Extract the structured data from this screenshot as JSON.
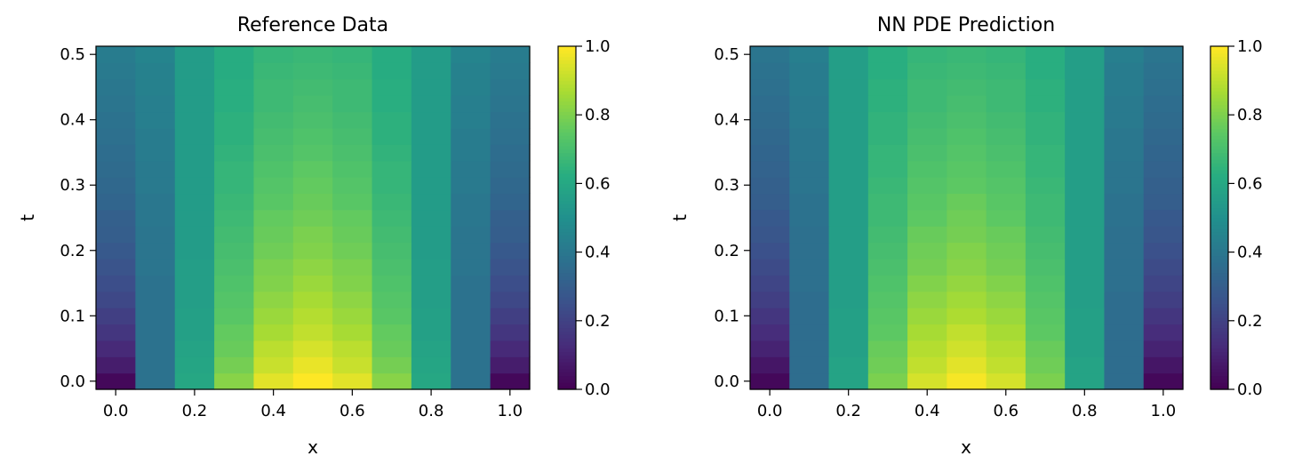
{
  "chart_data": [
    {
      "type": "heatmap",
      "title": "Reference Data",
      "xlabel": "x",
      "ylabel": "t",
      "x": [
        0.0,
        0.1,
        0.2,
        0.3,
        0.4,
        0.5,
        0.6,
        0.7,
        0.8,
        0.9,
        1.0
      ],
      "t_values": [
        0.0,
        0.025,
        0.05,
        0.075,
        0.1,
        0.125,
        0.15,
        0.175,
        0.2,
        0.225,
        0.25,
        0.275,
        0.3,
        0.325,
        0.35,
        0.375,
        0.4,
        0.425,
        0.45,
        0.475,
        0.5
      ],
      "xlim": [
        -0.05,
        1.05
      ],
      "ylim": [
        -0.0125,
        0.5125
      ],
      "xticks": [
        "0.0",
        "0.2",
        "0.4",
        "0.6",
        "0.8",
        "1.0"
      ],
      "yticks": [
        "0.0",
        "0.1",
        "0.2",
        "0.3",
        "0.4",
        "0.5"
      ],
      "colorbar": {
        "range": [
          0.0,
          1.0
        ],
        "ticks": [
          "0.0",
          "0.2",
          "0.4",
          "0.6",
          "0.8",
          "1.0"
        ],
        "colormap": "viridis"
      },
      "description_of_values": "u(x,t) values: rows by t, columns by x",
      "values": [
        [
          0.02,
          0.38,
          0.6,
          0.82,
          0.96,
          1.0,
          0.96,
          0.82,
          0.6,
          0.38,
          0.02
        ],
        [
          0.08,
          0.38,
          0.59,
          0.79,
          0.92,
          0.97,
          0.92,
          0.79,
          0.59,
          0.38,
          0.08
        ],
        [
          0.12,
          0.38,
          0.58,
          0.77,
          0.9,
          0.94,
          0.9,
          0.77,
          0.58,
          0.38,
          0.12
        ],
        [
          0.16,
          0.38,
          0.57,
          0.76,
          0.87,
          0.91,
          0.87,
          0.76,
          0.57,
          0.38,
          0.16
        ],
        [
          0.19,
          0.38,
          0.57,
          0.74,
          0.85,
          0.89,
          0.85,
          0.74,
          0.57,
          0.38,
          0.19
        ],
        [
          0.22,
          0.38,
          0.56,
          0.73,
          0.83,
          0.87,
          0.83,
          0.73,
          0.56,
          0.38,
          0.22
        ],
        [
          0.24,
          0.38,
          0.56,
          0.72,
          0.81,
          0.85,
          0.81,
          0.72,
          0.56,
          0.38,
          0.24
        ],
        [
          0.26,
          0.39,
          0.56,
          0.71,
          0.8,
          0.83,
          0.8,
          0.71,
          0.56,
          0.39,
          0.26
        ],
        [
          0.28,
          0.39,
          0.55,
          0.7,
          0.78,
          0.81,
          0.78,
          0.7,
          0.55,
          0.39,
          0.28
        ],
        [
          0.3,
          0.39,
          0.55,
          0.69,
          0.77,
          0.8,
          0.77,
          0.69,
          0.55,
          0.39,
          0.3
        ],
        [
          0.31,
          0.4,
          0.55,
          0.68,
          0.76,
          0.78,
          0.76,
          0.68,
          0.55,
          0.4,
          0.31
        ],
        [
          0.33,
          0.4,
          0.55,
          0.67,
          0.74,
          0.77,
          0.74,
          0.67,
          0.55,
          0.4,
          0.33
        ],
        [
          0.34,
          0.41,
          0.55,
          0.66,
          0.73,
          0.76,
          0.73,
          0.66,
          0.55,
          0.41,
          0.34
        ],
        [
          0.35,
          0.41,
          0.55,
          0.66,
          0.72,
          0.75,
          0.72,
          0.66,
          0.55,
          0.41,
          0.35
        ],
        [
          0.36,
          0.42,
          0.55,
          0.65,
          0.71,
          0.73,
          0.71,
          0.65,
          0.55,
          0.42,
          0.36
        ],
        [
          0.37,
          0.42,
          0.55,
          0.64,
          0.7,
          0.72,
          0.7,
          0.64,
          0.55,
          0.42,
          0.37
        ],
        [
          0.38,
          0.43,
          0.55,
          0.64,
          0.69,
          0.71,
          0.69,
          0.64,
          0.55,
          0.43,
          0.38
        ],
        [
          0.39,
          0.43,
          0.55,
          0.63,
          0.68,
          0.7,
          0.68,
          0.63,
          0.55,
          0.43,
          0.39
        ],
        [
          0.4,
          0.44,
          0.55,
          0.63,
          0.68,
          0.69,
          0.68,
          0.63,
          0.55,
          0.44,
          0.4
        ],
        [
          0.41,
          0.44,
          0.55,
          0.62,
          0.67,
          0.68,
          0.67,
          0.62,
          0.55,
          0.44,
          0.41
        ],
        [
          0.42,
          0.45,
          0.55,
          0.62,
          0.66,
          0.67,
          0.66,
          0.62,
          0.55,
          0.45,
          0.42
        ]
      ]
    },
    {
      "type": "heatmap",
      "title": "NN PDE Prediction",
      "xlabel": "x",
      "ylabel": "t",
      "x": [
        0.0,
        0.1,
        0.2,
        0.3,
        0.4,
        0.5,
        0.6,
        0.7,
        0.8,
        0.9,
        1.0
      ],
      "t_values": [
        0.0,
        0.025,
        0.05,
        0.075,
        0.1,
        0.125,
        0.15,
        0.175,
        0.2,
        0.225,
        0.25,
        0.275,
        0.3,
        0.325,
        0.35,
        0.375,
        0.4,
        0.425,
        0.45,
        0.475,
        0.5
      ],
      "xlim": [
        -0.05,
        1.05
      ],
      "ylim": [
        -0.0125,
        0.5125
      ],
      "xticks": [
        "0.0",
        "0.2",
        "0.4",
        "0.6",
        "0.8",
        "1.0"
      ],
      "yticks": [
        "0.0",
        "0.1",
        "0.2",
        "0.3",
        "0.4",
        "0.5"
      ],
      "colorbar": {
        "range": [
          0.0,
          1.0
        ],
        "ticks": [
          "0.0",
          "0.2",
          "0.4",
          "0.6",
          "0.8",
          "1.0"
        ],
        "colormap": "viridis"
      },
      "description_of_values": "u(x,t) values: rows by t, columns by x",
      "values": [
        [
          0.02,
          0.36,
          0.58,
          0.8,
          0.94,
          0.99,
          0.94,
          0.8,
          0.58,
          0.36,
          0.02
        ],
        [
          0.06,
          0.36,
          0.58,
          0.78,
          0.91,
          0.96,
          0.91,
          0.78,
          0.58,
          0.36,
          0.06
        ],
        [
          0.1,
          0.36,
          0.57,
          0.77,
          0.89,
          0.93,
          0.89,
          0.77,
          0.57,
          0.36,
          0.1
        ],
        [
          0.13,
          0.36,
          0.57,
          0.75,
          0.87,
          0.91,
          0.87,
          0.75,
          0.57,
          0.36,
          0.13
        ],
        [
          0.16,
          0.36,
          0.57,
          0.74,
          0.85,
          0.88,
          0.85,
          0.74,
          0.57,
          0.36,
          0.16
        ],
        [
          0.19,
          0.36,
          0.56,
          0.73,
          0.83,
          0.86,
          0.83,
          0.73,
          0.56,
          0.36,
          0.19
        ],
        [
          0.21,
          0.37,
          0.56,
          0.72,
          0.81,
          0.84,
          0.81,
          0.72,
          0.56,
          0.37,
          0.21
        ],
        [
          0.23,
          0.37,
          0.56,
          0.71,
          0.79,
          0.82,
          0.79,
          0.71,
          0.56,
          0.37,
          0.23
        ],
        [
          0.25,
          0.37,
          0.56,
          0.7,
          0.78,
          0.81,
          0.78,
          0.7,
          0.56,
          0.37,
          0.25
        ],
        [
          0.27,
          0.37,
          0.56,
          0.69,
          0.77,
          0.79,
          0.77,
          0.69,
          0.56,
          0.37,
          0.27
        ],
        [
          0.28,
          0.38,
          0.56,
          0.68,
          0.75,
          0.78,
          0.75,
          0.68,
          0.56,
          0.38,
          0.28
        ],
        [
          0.3,
          0.38,
          0.56,
          0.68,
          0.74,
          0.77,
          0.74,
          0.68,
          0.56,
          0.38,
          0.3
        ],
        [
          0.31,
          0.39,
          0.56,
          0.67,
          0.73,
          0.75,
          0.73,
          0.67,
          0.56,
          0.39,
          0.31
        ],
        [
          0.32,
          0.39,
          0.56,
          0.66,
          0.72,
          0.74,
          0.72,
          0.66,
          0.56,
          0.39,
          0.32
        ],
        [
          0.33,
          0.4,
          0.56,
          0.66,
          0.71,
          0.73,
          0.71,
          0.66,
          0.56,
          0.4,
          0.33
        ],
        [
          0.34,
          0.4,
          0.56,
          0.65,
          0.7,
          0.72,
          0.7,
          0.65,
          0.56,
          0.4,
          0.34
        ],
        [
          0.35,
          0.41,
          0.56,
          0.65,
          0.69,
          0.71,
          0.69,
          0.65,
          0.56,
          0.41,
          0.35
        ],
        [
          0.36,
          0.41,
          0.56,
          0.64,
          0.68,
          0.7,
          0.68,
          0.64,
          0.56,
          0.41,
          0.36
        ],
        [
          0.37,
          0.42,
          0.56,
          0.64,
          0.68,
          0.69,
          0.68,
          0.64,
          0.56,
          0.42,
          0.37
        ],
        [
          0.38,
          0.42,
          0.56,
          0.63,
          0.67,
          0.68,
          0.67,
          0.63,
          0.56,
          0.42,
          0.38
        ],
        [
          0.39,
          0.43,
          0.56,
          0.63,
          0.66,
          0.67,
          0.66,
          0.63,
          0.56,
          0.43,
          0.39
        ]
      ]
    }
  ]
}
